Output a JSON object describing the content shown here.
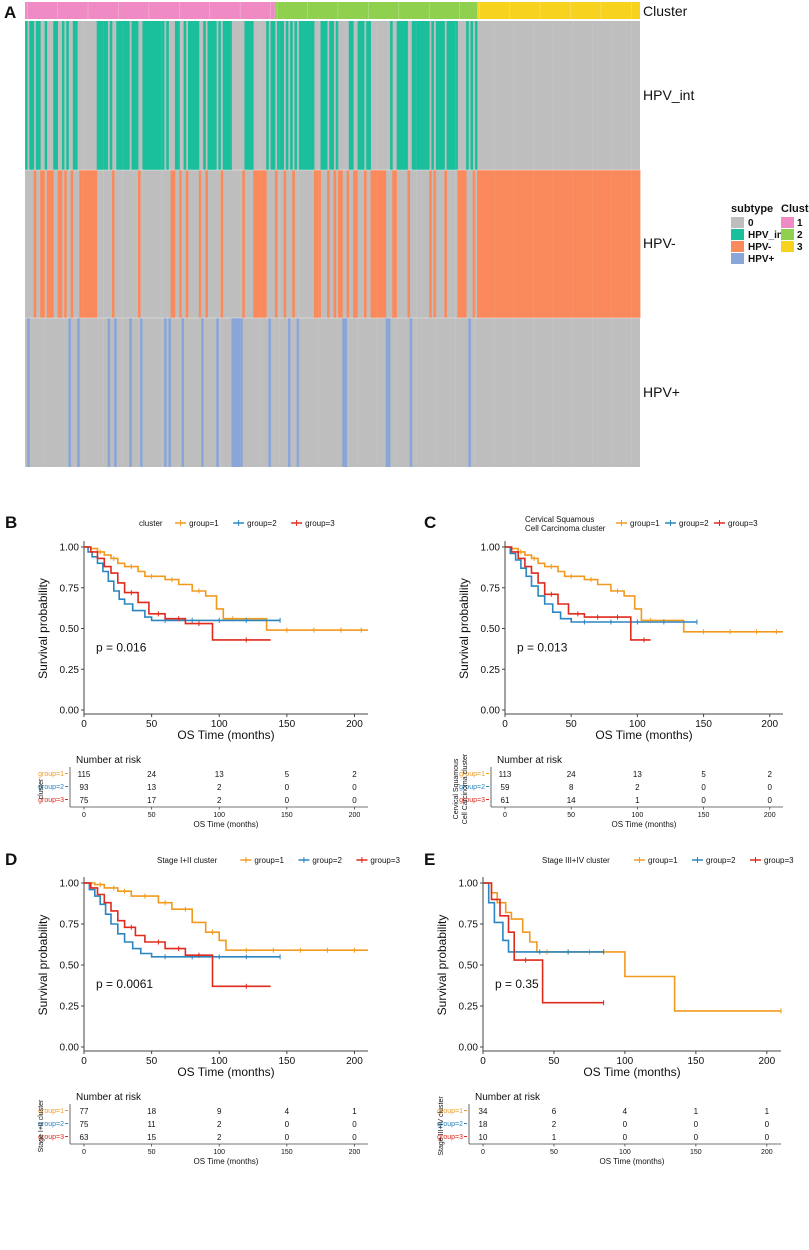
{
  "colors": {
    "background": "#ffffff",
    "heatmap_bg": "#bebebe",
    "hpv_int": "#1abf9c",
    "hpv_neg": "#fa8a5c",
    "hpv_pos": "#8aa6d8",
    "cluster1": "#f08ac4",
    "cluster2": "#8fd14f",
    "cluster3": "#f7d21f",
    "group1": "#f29a1e",
    "group2": "#2b85c0",
    "group3": "#e02a1d",
    "axis": "#444444"
  },
  "panel_labels": [
    "A",
    "B",
    "C",
    "D",
    "E"
  ],
  "heatmap": {
    "track_label": "Cluster",
    "row_labels": [
      "HPV_int",
      "HPV-",
      "HPV+"
    ],
    "legend_subtype": {
      "title": "subtype",
      "items": [
        {
          "label": "0",
          "color": "#bebebe"
        },
        {
          "label": "HPV_int",
          "color": "#1abf9c"
        },
        {
          "label": "HPV-",
          "color": "#fa8a5c"
        },
        {
          "label": "HPV+",
          "color": "#8aa6d8"
        }
      ]
    },
    "legend_cluster": {
      "title": "Cluster",
      "items": [
        {
          "label": "1",
          "color": "#f08ac4"
        },
        {
          "label": "2",
          "color": "#8fd14f"
        },
        {
          "label": "3",
          "color": "#f7d21f"
        }
      ]
    },
    "cluster_sizes": [
      115,
      93,
      75
    ]
  },
  "chart_data": [
    {
      "type": "survival",
      "panel": "B",
      "legend_title": [
        "cluster"
      ],
      "legend_items": [
        "group=1",
        "group=2",
        "group=3"
      ],
      "xlabel": "OS Time (months)",
      "ylabel": "Survival probability",
      "xlim": [
        0,
        210
      ],
      "ylim": [
        0,
        1
      ],
      "xticks": [
        0,
        50,
        100,
        150,
        200
      ],
      "yticks": [
        "0.00",
        "0.25",
        "0.50",
        "0.75",
        "1.00"
      ],
      "pvalue": "p = 0.016",
      "risk_title": "Number at risk",
      "risk_ylabel": [
        "cluster"
      ],
      "risk_xlabel": "OS Time (months)",
      "risk_groups": [
        "group=1",
        "group=2",
        "group=3"
      ],
      "risk_table": [
        [
          115,
          24,
          13,
          5,
          2
        ],
        [
          93,
          13,
          2,
          0,
          0
        ],
        [
          75,
          17,
          2,
          0,
          0
        ]
      ],
      "series": [
        {
          "name": "group=1",
          "steps": [
            [
              0,
              1
            ],
            [
              5,
              0.99
            ],
            [
              10,
              0.97
            ],
            [
              15,
              0.95
            ],
            [
              20,
              0.93
            ],
            [
              25,
              0.9
            ],
            [
              30,
              0.88
            ],
            [
              40,
              0.85
            ],
            [
              45,
              0.82
            ],
            [
              60,
              0.8
            ],
            [
              70,
              0.77
            ],
            [
              80,
              0.73
            ],
            [
              90,
              0.7
            ],
            [
              98,
              0.62
            ],
            [
              103,
              0.56
            ],
            [
              135,
              0.49
            ],
            [
              210,
              0.49
            ]
          ],
          "censor": [
            12,
            22,
            35,
            50,
            65,
            85,
            110,
            150,
            170,
            190,
            205
          ]
        },
        {
          "name": "group=2",
          "steps": [
            [
              0,
              1
            ],
            [
              3,
              0.97
            ],
            [
              6,
              0.94
            ],
            [
              10,
              0.9
            ],
            [
              14,
              0.85
            ],
            [
              18,
              0.79
            ],
            [
              22,
              0.73
            ],
            [
              26,
              0.68
            ],
            [
              30,
              0.65
            ],
            [
              36,
              0.61
            ],
            [
              45,
              0.57
            ],
            [
              50,
              0.55
            ],
            [
              145,
              0.55
            ]
          ],
          "censor": [
            60,
            80,
            100,
            120,
            145
          ]
        },
        {
          "name": "group=3",
          "steps": [
            [
              0,
              1
            ],
            [
              5,
              0.97
            ],
            [
              10,
              0.93
            ],
            [
              15,
              0.88
            ],
            [
              20,
              0.84
            ],
            [
              25,
              0.78
            ],
            [
              30,
              0.72
            ],
            [
              40,
              0.66
            ],
            [
              48,
              0.59
            ],
            [
              60,
              0.56
            ],
            [
              75,
              0.53
            ],
            [
              95,
              0.43
            ],
            [
              138,
              0.43
            ]
          ],
          "censor": [
            35,
            55,
            70,
            85,
            120
          ]
        }
      ]
    },
    {
      "type": "survival",
      "panel": "C",
      "legend_title": [
        "Cervical Squamous",
        "Cell Carcinoma cluster"
      ],
      "legend_items": [
        "group=1",
        "group=2",
        "group=3"
      ],
      "xlabel": "OS Time (months)",
      "ylabel": "Survival probability",
      "xlim": [
        0,
        210
      ],
      "ylim": [
        0,
        1
      ],
      "xticks": [
        0,
        50,
        100,
        150,
        200
      ],
      "yticks": [
        "0.00",
        "0.25",
        "0.50",
        "0.75",
        "1.00"
      ],
      "pvalue": "p = 0.013",
      "risk_title": "Number at risk",
      "risk_ylabel": [
        "Cervical Squamous",
        "Cell Carcinoma cluster"
      ],
      "risk_xlabel": "OS Time (months)",
      "risk_groups": [
        "group=1",
        "group=2",
        "group=3"
      ],
      "risk_table": [
        [
          113,
          24,
          13,
          5,
          2
        ],
        [
          59,
          8,
          2,
          0,
          0
        ],
        [
          61,
          14,
          1,
          0,
          0
        ]
      ],
      "series": [
        {
          "name": "group=1",
          "steps": [
            [
              0,
              1
            ],
            [
              5,
              0.99
            ],
            [
              10,
              0.97
            ],
            [
              15,
              0.95
            ],
            [
              20,
              0.93
            ],
            [
              25,
              0.9
            ],
            [
              30,
              0.88
            ],
            [
              40,
              0.85
            ],
            [
              45,
              0.82
            ],
            [
              60,
              0.8
            ],
            [
              70,
              0.77
            ],
            [
              80,
              0.73
            ],
            [
              90,
              0.7
            ],
            [
              98,
              0.62
            ],
            [
              103,
              0.55
            ],
            [
              135,
              0.48
            ],
            [
              210,
              0.48
            ]
          ],
          "censor": [
            12,
            22,
            35,
            50,
            65,
            85,
            110,
            150,
            170,
            190,
            205
          ]
        },
        {
          "name": "group=2",
          "steps": [
            [
              0,
              1
            ],
            [
              4,
              0.96
            ],
            [
              8,
              0.92
            ],
            [
              12,
              0.87
            ],
            [
              16,
              0.82
            ],
            [
              20,
              0.76
            ],
            [
              25,
              0.7
            ],
            [
              30,
              0.65
            ],
            [
              36,
              0.6
            ],
            [
              42,
              0.56
            ],
            [
              50,
              0.54
            ],
            [
              145,
              0.54
            ]
          ],
          "censor": [
            60,
            80,
            100,
            120,
            145
          ]
        },
        {
          "name": "group=3",
          "steps": [
            [
              0,
              1
            ],
            [
              5,
              0.97
            ],
            [
              10,
              0.93
            ],
            [
              15,
              0.88
            ],
            [
              20,
              0.84
            ],
            [
              25,
              0.78
            ],
            [
              30,
              0.71
            ],
            [
              40,
              0.65
            ],
            [
              48,
              0.59
            ],
            [
              60,
              0.57
            ],
            [
              95,
              0.43
            ],
            [
              110,
              0.43
            ]
          ],
          "censor": [
            35,
            55,
            70,
            85,
            105
          ]
        }
      ]
    },
    {
      "type": "survival",
      "panel": "D",
      "legend_title": [
        "Stage I+II cluster"
      ],
      "legend_items": [
        "group=1",
        "group=2",
        "group=3"
      ],
      "xlabel": "OS Time (months)",
      "ylabel": "Survival probability",
      "xlim": [
        0,
        210
      ],
      "ylim": [
        0,
        1
      ],
      "xticks": [
        0,
        50,
        100,
        150,
        200
      ],
      "yticks": [
        "0.00",
        "0.25",
        "0.50",
        "0.75",
        "1.00"
      ],
      "pvalue": "p = 0.0061",
      "risk_title": "Number at risk",
      "risk_ylabel": [
        "Stage I+II cluster"
      ],
      "risk_xlabel": "OS Time (months)",
      "risk_groups": [
        "group=1",
        "group=2",
        "group=3"
      ],
      "risk_table": [
        [
          77,
          18,
          9,
          4,
          1
        ],
        [
          75,
          11,
          2,
          0,
          0
        ],
        [
          63,
          15,
          2,
          0,
          0
        ]
      ],
      "series": [
        {
          "name": "group=1",
          "steps": [
            [
              0,
              1
            ],
            [
              8,
              0.99
            ],
            [
              15,
              0.97
            ],
            [
              25,
              0.95
            ],
            [
              35,
              0.92
            ],
            [
              55,
              0.88
            ],
            [
              65,
              0.84
            ],
            [
              80,
              0.76
            ],
            [
              90,
              0.7
            ],
            [
              100,
              0.65
            ],
            [
              105,
              0.59
            ],
            [
              210,
              0.59
            ]
          ],
          "censor": [
            12,
            22,
            30,
            45,
            60,
            75,
            95,
            120,
            140,
            160,
            180,
            200
          ]
        },
        {
          "name": "group=2",
          "steps": [
            [
              0,
              1
            ],
            [
              4,
              0.96
            ],
            [
              8,
              0.92
            ],
            [
              12,
              0.87
            ],
            [
              16,
              0.81
            ],
            [
              20,
              0.75
            ],
            [
              25,
              0.69
            ],
            [
              30,
              0.64
            ],
            [
              36,
              0.6
            ],
            [
              42,
              0.57
            ],
            [
              50,
              0.55
            ],
            [
              145,
              0.55
            ]
          ],
          "censor": [
            60,
            80,
            100,
            120,
            145
          ]
        },
        {
          "name": "group=3",
          "steps": [
            [
              0,
              1
            ],
            [
              5,
              0.97
            ],
            [
              10,
              0.93
            ],
            [
              15,
              0.88
            ],
            [
              20,
              0.83
            ],
            [
              25,
              0.77
            ],
            [
              30,
              0.73
            ],
            [
              38,
              0.68
            ],
            [
              45,
              0.64
            ],
            [
              60,
              0.6
            ],
            [
              75,
              0.56
            ],
            [
              95,
              0.37
            ],
            [
              138,
              0.37
            ]
          ],
          "censor": [
            35,
            55,
            70,
            85,
            120
          ]
        }
      ]
    },
    {
      "type": "survival",
      "panel": "E",
      "legend_title": [
        "Stage III+IV cluster"
      ],
      "legend_items": [
        "group=1",
        "group=2",
        "group=3"
      ],
      "xlabel": "OS Time (months)",
      "ylabel": "Survival probability",
      "xlim": [
        0,
        210
      ],
      "ylim": [
        0,
        1
      ],
      "xticks": [
        0,
        50,
        100,
        150,
        200
      ],
      "yticks": [
        "0.00",
        "0.25",
        "0.50",
        "0.75",
        "1.00"
      ],
      "pvalue": "p = 0.35",
      "risk_title": "Number at risk",
      "risk_ylabel": [
        "Stage III+IV cluster"
      ],
      "risk_xlabel": "OS Time (months)",
      "risk_groups": [
        "group=1",
        "group=2",
        "group=3"
      ],
      "risk_table": [
        [
          34,
          6,
          4,
          1,
          1
        ],
        [
          18,
          2,
          0,
          0,
          0
        ],
        [
          10,
          1,
          0,
          0,
          0
        ]
      ],
      "series": [
        {
          "name": "group=1",
          "steps": [
            [
              0,
              1
            ],
            [
              6,
              0.94
            ],
            [
              10,
              0.88
            ],
            [
              16,
              0.82
            ],
            [
              20,
              0.78
            ],
            [
              28,
              0.7
            ],
            [
              33,
              0.64
            ],
            [
              38,
              0.58
            ],
            [
              100,
              0.43
            ],
            [
              135,
              0.22
            ],
            [
              210,
              0.22
            ]
          ],
          "censor": [
            45,
            60,
            75,
            85,
            210
          ]
        },
        {
          "name": "group=2",
          "steps": [
            [
              0,
              1
            ],
            [
              4,
              0.88
            ],
            [
              8,
              0.76
            ],
            [
              14,
              0.65
            ],
            [
              18,
              0.58
            ],
            [
              85,
              0.58
            ]
          ],
          "censor": [
            40,
            60,
            85
          ]
        },
        {
          "name": "group=3",
          "steps": [
            [
              0,
              1
            ],
            [
              6,
              0.9
            ],
            [
              12,
              0.8
            ],
            [
              18,
              0.7
            ],
            [
              22,
              0.53
            ],
            [
              42,
              0.27
            ],
            [
              85,
              0.27
            ]
          ],
          "censor": [
            30,
            85
          ]
        }
      ]
    }
  ]
}
